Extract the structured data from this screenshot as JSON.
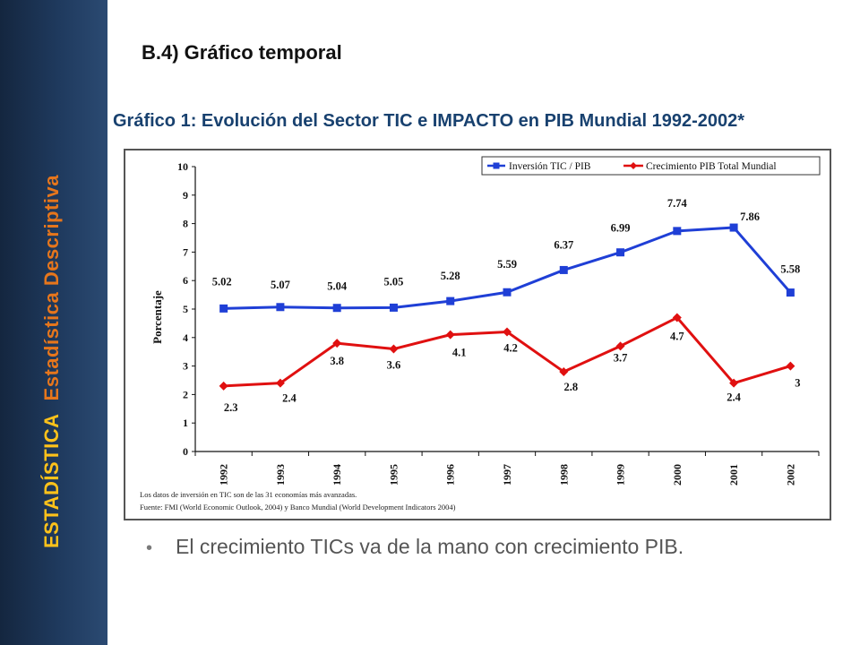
{
  "sidebar": {
    "main_label": "ESTADÍSTICA",
    "sub_label": "Estadística Descriptiva"
  },
  "slide_title": "B.4) Gráfico temporal",
  "chart_title": "Gráfico 1: Evolución del Sector TIC e IMPACTO en PIB Mundial 1992-2002*",
  "bullet": "El crecimiento TICs va de la mano con crecimiento PIB.",
  "notes": {
    "line1": "Los datos de inversión en TIC son de las 31  economías más avanzadas.",
    "line2": "Fuente:  FMI (World Economic Outlook, 2004)  y Banco Mundial (World Development Indicators 2004)"
  },
  "colors": {
    "series1": "#1f3fd6",
    "series2": "#e01010",
    "title": "#18416f",
    "sidebar_main": "#ffc21a",
    "sidebar_sub": "#e6761c"
  },
  "chart_data": {
    "type": "line",
    "categories": [
      "1992",
      "1993",
      "1994",
      "1995",
      "1996",
      "1997",
      "1998",
      "1999",
      "2000",
      "2001",
      "2002"
    ],
    "ylabel": "Porcentaje",
    "xlabel": "",
    "ylim": [
      0,
      10
    ],
    "yticks": [
      "0",
      "1",
      "2",
      "3",
      "4",
      "5",
      "6",
      "7",
      "8",
      "9",
      "10"
    ],
    "legend_position": "top-right",
    "grid": false,
    "series": [
      {
        "name": "Inversión TIC / PIB",
        "marker": "square",
        "color": "#1f3fd6",
        "values": [
          5.02,
          5.07,
          5.04,
          5.05,
          5.28,
          5.59,
          6.37,
          6.99,
          7.74,
          7.86,
          5.58
        ],
        "labels": [
          "5.02",
          "5.07",
          "5.04",
          "5.05",
          "5.28",
          "5.59",
          "6.37",
          "6.99",
          "7.74",
          "7.86",
          "5.58"
        ]
      },
      {
        "name": "Crecimiento PIB Total Mundial",
        "marker": "diamond",
        "color": "#e01010",
        "values": [
          2.3,
          2.4,
          3.8,
          3.6,
          4.1,
          4.2,
          2.8,
          3.7,
          4.7,
          2.4,
          3
        ],
        "labels": [
          "2.3",
          "2.4",
          "3.8",
          "3.6",
          "4.1",
          "4.2",
          "2.8",
          "3.7",
          "4.7",
          "2.4",
          "3"
        ]
      }
    ]
  }
}
